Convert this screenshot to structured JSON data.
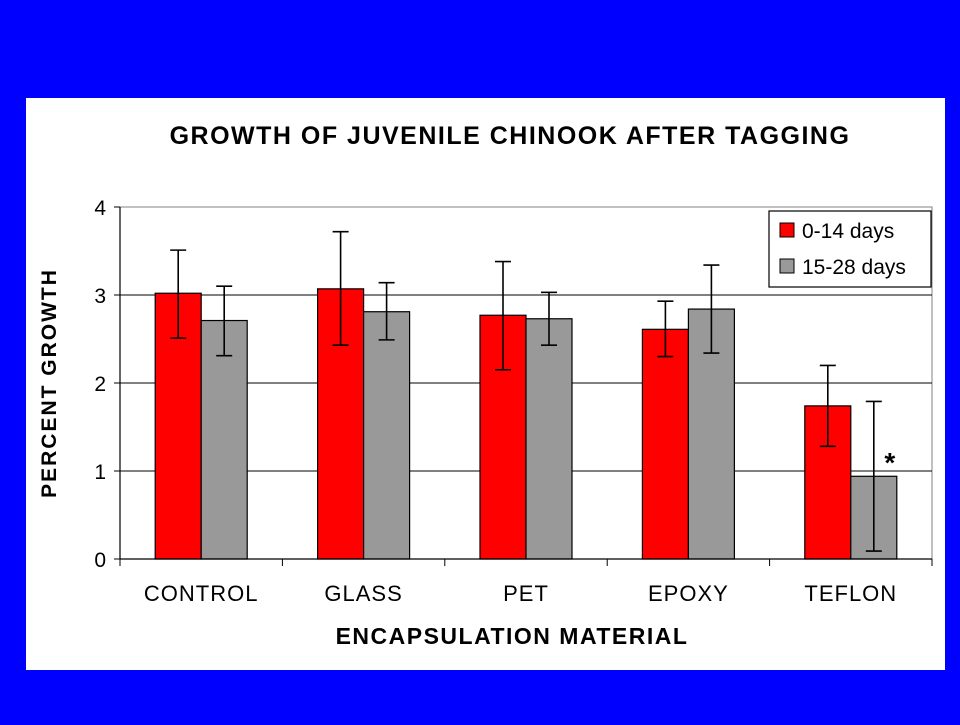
{
  "chart_data": {
    "type": "bar",
    "title": "GROWTH OF JUVENILE CHINOOK AFTER TAGGING",
    "xlabel": "ENCAPSULATION MATERIAL",
    "ylabel": "PERCENT GROWTH",
    "categories": [
      "CONTROL",
      "GLASS",
      "PET",
      "EPOXY",
      "TEFLON"
    ],
    "ylim": [
      0,
      4
    ],
    "yticks": [
      0,
      1,
      2,
      3,
      4
    ],
    "grid": true,
    "legend_position": "top-right",
    "series": [
      {
        "name": "0-14 days",
        "color": "#ff0000",
        "values": [
          3.02,
          3.07,
          2.77,
          2.61,
          1.74
        ],
        "err_low": [
          2.51,
          2.43,
          2.15,
          2.3,
          1.28
        ],
        "err_high": [
          3.51,
          3.72,
          3.38,
          2.93,
          2.2
        ]
      },
      {
        "name": "15-28 days",
        "color": "#999999",
        "values": [
          2.71,
          2.81,
          2.73,
          2.84,
          0.94
        ],
        "err_low": [
          2.31,
          2.49,
          2.43,
          2.34,
          0.09
        ],
        "err_high": [
          3.1,
          3.14,
          3.03,
          3.34,
          1.79
        ]
      }
    ],
    "annotations": [
      {
        "text": "*",
        "category": "TEFLON",
        "series": "15-28 days",
        "y": 1.15
      }
    ]
  }
}
